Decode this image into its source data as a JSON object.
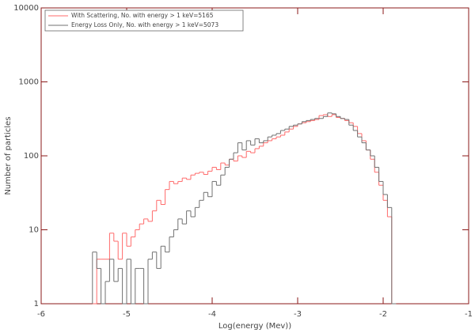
{
  "chart_data": {
    "type": "histogram",
    "xlabel": "Log(energy (Mev))",
    "ylabel": "Number of particles",
    "bins": [
      -5.4,
      -5.35,
      -5.3,
      -5.25,
      -5.2,
      -5.15,
      -5.1,
      -5.05,
      -5.0,
      -4.95,
      -4.9,
      -4.85,
      -4.8,
      -4.75,
      -4.7,
      -4.65,
      -4.6,
      -4.55,
      -4.5,
      -4.45,
      -4.4,
      -4.35,
      -4.3,
      -4.25,
      -4.2,
      -4.15,
      -4.1,
      -4.05,
      -4.0,
      -3.95,
      -3.9,
      -3.85,
      -3.8,
      -3.75,
      -3.7,
      -3.65,
      -3.6,
      -3.55,
      -3.5,
      -3.45,
      -3.4,
      -3.35,
      -3.3,
      -3.25,
      -3.2,
      -3.15,
      -3.1,
      -3.05,
      -3.0,
      -2.95,
      -2.9,
      -2.85,
      -2.8,
      -2.75,
      -2.7,
      -2.65,
      -2.6,
      -2.55,
      -2.5,
      -2.45,
      -2.4,
      -2.35,
      -2.3,
      -2.25,
      -2.2,
      -2.15,
      -2.1,
      -2.05,
      -2.0,
      -1.95,
      -1.9,
      -1.85
    ],
    "series": [
      {
        "name": "With Scattering, No. with energy > 1 keV=5165",
        "color": "#ff6a6a",
        "values": [
          1,
          4,
          4,
          4,
          9,
          7,
          4,
          9,
          6,
          8,
          10,
          12,
          14,
          13,
          18,
          25,
          22,
          35,
          45,
          42,
          45,
          50,
          48,
          55,
          58,
          60,
          56,
          62,
          70,
          65,
          80,
          75,
          90,
          85,
          100,
          95,
          115,
          110,
          125,
          135,
          150,
          160,
          170,
          180,
          190,
          210,
          230,
          250,
          270,
          280,
          290,
          300,
          310,
          350,
          360,
          340,
          360,
          330,
          320,
          300,
          280,
          250,
          200,
          160,
          120,
          90,
          60,
          40,
          25,
          15,
          1
        ]
      },
      {
        "name": "Energy Loss Only, No. with energy > 1 keV=5073",
        "color": "#707070",
        "values": [
          5,
          3,
          1,
          2,
          4,
          2,
          3,
          1,
          4,
          1,
          3,
          3,
          1,
          4,
          5,
          3,
          6,
          5,
          8,
          10,
          14,
          12,
          18,
          15,
          20,
          25,
          32,
          28,
          45,
          40,
          55,
          70,
          90,
          110,
          150,
          120,
          160,
          140,
          170,
          150,
          160,
          180,
          190,
          200,
          220,
          230,
          250,
          260,
          270,
          290,
          300,
          310,
          320,
          320,
          340,
          380,
          370,
          340,
          320,
          310,
          260,
          220,
          180,
          150,
          120,
          100,
          70,
          45,
          30,
          20,
          1
        ]
      }
    ],
    "xlim": [
      -6,
      -1
    ],
    "xticks": [
      -6,
      -5,
      -4,
      -3,
      -2,
      -1
    ],
    "ylim": [
      1,
      10000
    ],
    "yticks": [
      1,
      10,
      100,
      1000,
      10000
    ],
    "log_y": true
  }
}
